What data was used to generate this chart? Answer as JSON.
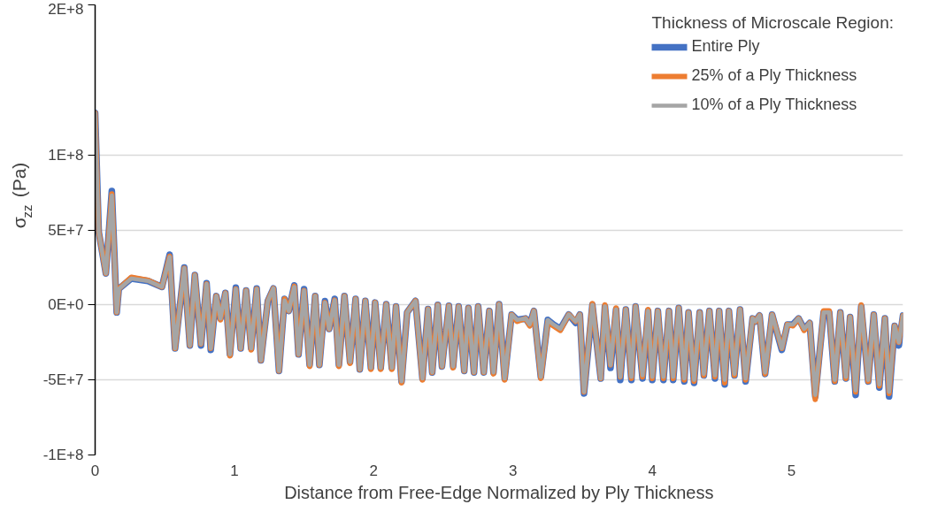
{
  "chart_data": {
    "type": "line",
    "xlabel": "Distance from Free-Edge Normalized by Ply Thickness",
    "ylabel": "σ$_{zz}$ (Pa)",
    "legend_title": "Thickness of Microscale Region:",
    "legend": "top right",
    "grid": "y",
    "line_style": "solid",
    "xlim": [
      0,
      5.8
    ],
    "xticks": [
      0,
      1,
      2,
      3,
      4,
      5
    ],
    "ylim": [
      -100000000.0,
      200000000.0
    ],
    "yticks": [
      {
        "value": -100000000.0,
        "label": "-1E+8"
      },
      {
        "value": -50000000.0,
        "label": "-5E+7"
      },
      {
        "value": 0,
        "label": "0E+0"
      },
      {
        "value": 50000000.0,
        "label": "5E+7"
      },
      {
        "value": 100000000.0,
        "label": "1E+8"
      },
      {
        "value": 200000000.0,
        "label": "2E+8"
      }
    ],
    "x": [
      0,
      0.026,
      0.077,
      0.12,
      0.155,
      0.17,
      0.26,
      0.38,
      0.48,
      0.535,
      0.574,
      0.64,
      0.68,
      0.716,
      0.76,
      0.8,
      0.83,
      0.87,
      0.9,
      0.935,
      0.968,
      1.01,
      1.045,
      1.084,
      1.12,
      1.16,
      1.19,
      1.24,
      1.28,
      1.32,
      1.36,
      1.39,
      1.43,
      1.46,
      1.5,
      1.54,
      1.58,
      1.61,
      1.65,
      1.68,
      1.72,
      1.75,
      1.79,
      1.83,
      1.87,
      1.9,
      1.94,
      1.98,
      2.01,
      2.05,
      2.09,
      2.13,
      2.16,
      2.2,
      2.24,
      2.3,
      2.35,
      2.39,
      2.42,
      2.46,
      2.49,
      2.54,
      2.57,
      2.61,
      2.65,
      2.68,
      2.72,
      2.75,
      2.79,
      2.83,
      2.86,
      2.9,
      2.94,
      2.99,
      3.03,
      3.09,
      3.12,
      3.15,
      3.2,
      3.25,
      3.29,
      3.34,
      3.4,
      3.45,
      3.48,
      3.51,
      3.57,
      3.63,
      3.66,
      3.7,
      3.74,
      3.77,
      3.81,
      3.85,
      3.88,
      3.93,
      3.97,
      4.0,
      4.04,
      4.08,
      4.12,
      4.15,
      4.19,
      4.23,
      4.26,
      4.3,
      4.34,
      4.37,
      4.41,
      4.45,
      4.48,
      4.52,
      4.55,
      4.59,
      4.63,
      4.67,
      4.72,
      4.74,
      4.77,
      4.81,
      4.86,
      4.93,
      4.97,
      5.01,
      5.05,
      5.09,
      5.13,
      5.17,
      5.23,
      5.27,
      5.31,
      5.35,
      5.39,
      5.42,
      5.46,
      5.5,
      5.55,
      5.59,
      5.63,
      5.67,
      5.7,
      5.74,
      5.77,
      5.8
    ],
    "series": [
      {
        "name": "Entire Ply",
        "color": "#4472c4",
        "values": [
          128000000.0,
          48600000.0,
          21000000.0,
          76000000.0,
          -5000000.0,
          10700000.0,
          17600000.0,
          16000000.0,
          12000000.0,
          33500000.0,
          -29000000.0,
          25000000.0,
          -27000000.0,
          20000000.0,
          -27000000.0,
          14500000.0,
          -30000000.0,
          6000000.0,
          -9000000.0,
          8000000.0,
          -33000000.0,
          11500000.0,
          -29000000.0,
          9600000.0,
          -29000000.0,
          11000000.0,
          -37000000.0,
          2700000.0,
          11000000.0,
          -44000000.0,
          4000000.0,
          -4000000.0,
          13000000.0,
          -33000000.0,
          10500000.0,
          -40000000.0,
          6000000.0,
          -40000000.0,
          2500000.0,
          -16000000.0,
          4000000.0,
          -40000000.0,
          6000000.0,
          -38000000.0,
          4000000.0,
          -43000000.0,
          2700000.0,
          -42000000.0,
          1600000.0,
          -42000000.0,
          500000.0,
          -42000000.0,
          -1000000.0,
          -51000000.0,
          -5000000.0,
          2700000.0,
          -49000000.0,
          -2700000.0,
          -45000000.0,
          0,
          -41000000.0,
          -500000.0,
          -41000000.0,
          -1000000.0,
          -44000000.0,
          -2000000.0,
          -45000000.0,
          -1000000.0,
          -45000000.0,
          -4000000.0,
          -45000000.0,
          500000.0,
          -49000000.0,
          -6400000.0,
          -10000000.0,
          -9000000.0,
          -13000000.0,
          -4000000.0,
          -48000000.0,
          -10000000.0,
          -13000000.0,
          -16000000.0,
          -6400000.0,
          -12000000.0,
          -6400000.0,
          -59000000.0,
          0,
          -49000000.0,
          -1000000.0,
          -42000000.0,
          -3000000.0,
          -50000000.0,
          -3000000.0,
          -50000000.0,
          -1000000.0,
          -49000000.0,
          -4000000.0,
          -50000000.0,
          -4000000.0,
          -50000000.0,
          -4000000.0,
          -50000000.0,
          -2000000.0,
          -51000000.0,
          -5000000.0,
          -52000000.0,
          -5000000.0,
          -47000000.0,
          -4000000.0,
          -49000000.0,
          -4000000.0,
          -53000000.0,
          -4000000.0,
          -47000000.0,
          -3000000.0,
          -51000000.0,
          -9000000.0,
          -11000000.0,
          -7000000.0,
          -46000000.0,
          -6400000.0,
          -30000000.0,
          -13000000.0,
          -13000000.0,
          -9000000.0,
          -16000000.0,
          -12000000.0,
          -61000000.0,
          -5000000.0,
          -5000000.0,
          -51000000.0,
          -5000000.0,
          -49000000.0,
          -8000000.0,
          -60000000.0,
          -1000000.0,
          -51000000.0,
          -6400000.0,
          -55000000.0,
          -9000000.0,
          -61000000.0,
          -14000000.0,
          -27000000.0,
          -7000000.0
        ]
      },
      {
        "name": "25% of a Ply Thickness",
        "color": "#ed7d31",
        "values": [
          128000000.0,
          48600000.0,
          21000000.0,
          74000000.0,
          -5000000.0,
          10700000.0,
          18500000.0,
          16500000.0,
          12000000.0,
          32500000.0,
          -29000000.0,
          24500000.0,
          -27000000.0,
          20000000.0,
          -26000000.0,
          14000000.0,
          -29000000.0,
          6000000.0,
          -10000000.0,
          8000000.0,
          -34000000.0,
          10700000.0,
          -29000000.0,
          9600000.0,
          -30000000.0,
          10700000.0,
          -37000000.0,
          2700000.0,
          11000000.0,
          -44000000.0,
          4000000.0,
          -4000000.0,
          12500000.0,
          -33000000.0,
          9600000.0,
          -41000000.0,
          6000000.0,
          -40000000.0,
          1600000.0,
          -16000000.0,
          3200000.0,
          -41000000.0,
          6000000.0,
          -39000000.0,
          4000000.0,
          -43000000.0,
          2700000.0,
          -43000000.0,
          1600000.0,
          -43000000.0,
          500000.0,
          -43000000.0,
          -1000000.0,
          -52000000.0,
          -5000000.0,
          2700000.0,
          -50000000.0,
          -2700000.0,
          -45000000.0,
          0,
          -41000000.0,
          -500000.0,
          -42000000.0,
          -1000000.0,
          -44000000.0,
          -2000000.0,
          -45000000.0,
          -1000000.0,
          -45000000.0,
          -4000000.0,
          -46000000.0,
          500000.0,
          -50000000.0,
          -6400000.0,
          -11000000.0,
          -9000000.0,
          -14000000.0,
          -4000000.0,
          -49000000.0,
          -11000000.0,
          -14000000.0,
          -17000000.0,
          -6400000.0,
          -11000000.0,
          -6400000.0,
          -58000000.0,
          1000000.0,
          -49000000.0,
          0,
          -40000000.0,
          -2000000.0,
          -48000000.0,
          -3000000.0,
          -49000000.0,
          -1000000.0,
          -48000000.0,
          -3000000.0,
          -49000000.0,
          -4000000.0,
          -49000000.0,
          -4000000.0,
          -49000000.0,
          -2000000.0,
          -50000000.0,
          -5000000.0,
          -51000000.0,
          -5000000.0,
          -47000000.0,
          -4000000.0,
          -48000000.0,
          -4000000.0,
          -52000000.0,
          -4000000.0,
          -47000000.0,
          -3000000.0,
          -50000000.0,
          -9000000.0,
          -11000000.0,
          -7000000.0,
          -46000000.0,
          -6400000.0,
          -29000000.0,
          -13000000.0,
          -14000000.0,
          -9000000.0,
          -17000000.0,
          -12000000.0,
          -63000000.0,
          -4000000.0,
          -4000000.0,
          -51000000.0,
          -5000000.0,
          -49000000.0,
          -8000000.0,
          -58000000.0,
          0,
          -51000000.0,
          -6400000.0,
          -54000000.0,
          -9000000.0,
          -59000000.0,
          -14000000.0,
          -25000000.0,
          -7000000.0
        ]
      },
      {
        "name": "10% of a Ply Thickness",
        "color": "#a5a5a5",
        "values": [
          128000000.0,
          48600000.0,
          21000000.0,
          73000000.0,
          -5000000.0,
          10700000.0,
          17600000.0,
          16000000.0,
          12000000.0,
          32000000.0,
          -29000000.0,
          24500000.0,
          -27000000.0,
          20000000.0,
          -26000000.0,
          14000000.0,
          -29000000.0,
          6000000.0,
          -9000000.0,
          8000000.0,
          -33000000.0,
          10700000.0,
          -29000000.0,
          9600000.0,
          -29000000.0,
          10700000.0,
          -37000000.0,
          2700000.0,
          11000000.0,
          -44000000.0,
          3000000.0,
          -4000000.0,
          12000000.0,
          -33000000.0,
          9600000.0,
          -40000000.0,
          6000000.0,
          -40000000.0,
          1600000.0,
          -16000000.0,
          3200000.0,
          -40000000.0,
          6000000.0,
          -38000000.0,
          4000000.0,
          -43000000.0,
          2700000.0,
          -42000000.0,
          1600000.0,
          -42000000.0,
          500000.0,
          -42000000.0,
          -1000000.0,
          -51000000.0,
          -5000000.0,
          2700000.0,
          -49000000.0,
          -2700000.0,
          -45000000.0,
          0,
          -41000000.0,
          -500000.0,
          -41000000.0,
          -1000000.0,
          -44000000.0,
          -2000000.0,
          -45000000.0,
          -1000000.0,
          -45000000.0,
          -4000000.0,
          -45000000.0,
          500000.0,
          -49000000.0,
          -6400000.0,
          -10000000.0,
          -9000000.0,
          -13000000.0,
          -4000000.0,
          -48000000.0,
          -10000000.0,
          -13000000.0,
          -16000000.0,
          -6400000.0,
          -11000000.0,
          -6400000.0,
          -58000000.0,
          0,
          -49000000.0,
          -1000000.0,
          -40000000.0,
          -3000000.0,
          -48000000.0,
          -3000000.0,
          -48000000.0,
          -1000000.0,
          -47000000.0,
          -4000000.0,
          -48000000.0,
          -4000000.0,
          -48000000.0,
          -4000000.0,
          -48000000.0,
          -2000000.0,
          -49000000.0,
          -5000000.0,
          -50000000.0,
          -5000000.0,
          -46000000.0,
          -4000000.0,
          -47000000.0,
          -4000000.0,
          -50000000.0,
          -4000000.0,
          -46000000.0,
          -3000000.0,
          -49000000.0,
          -9000000.0,
          -11000000.0,
          -7000000.0,
          -45000000.0,
          -6400000.0,
          -29000000.0,
          -13000000.0,
          -13000000.0,
          -9000000.0,
          -16000000.0,
          -12000000.0,
          -60000000.0,
          -5000000.0,
          -5000000.0,
          -50000000.0,
          -5000000.0,
          -48000000.0,
          -8000000.0,
          -57000000.0,
          -1000000.0,
          -50000000.0,
          -6400000.0,
          -53000000.0,
          -9000000.0,
          -58000000.0,
          -14000000.0,
          -25000000.0,
          -7000000.0
        ]
      }
    ]
  }
}
